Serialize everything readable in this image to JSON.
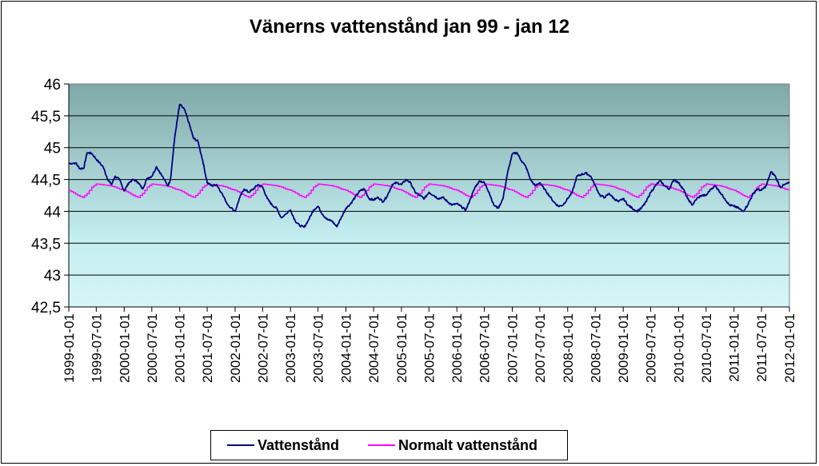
{
  "chart_data": {
    "type": "line",
    "title": "Vänerns vattenstånd jan 99 - jan 12",
    "xlabel": "",
    "ylabel": "",
    "ylim": [
      42.5,
      46
    ],
    "yticks": [
      "46",
      "45,5",
      "45",
      "44,5",
      "44",
      "43,5",
      "43",
      "42,5"
    ],
    "ytick_values": [
      46,
      45.5,
      45,
      44.5,
      44,
      43.5,
      43,
      42.5
    ],
    "xlim": [
      "1999-01-01",
      "2012-01-01"
    ],
    "xticks": [
      "1999-01-01",
      "1999-07-01",
      "2000-01-01",
      "2000-07-01",
      "2001-01-01",
      "2001-07-01",
      "2002-01-01",
      "2002-07-01",
      "2003-01-01",
      "2003-07-01",
      "2004-01-01",
      "2004-07-01",
      "2005-01-01",
      "2005-07-01",
      "2006-01-01",
      "2006-07-01",
      "2007-01-01",
      "2007-07-01",
      "2008-01-01",
      "2008-07-01",
      "2009-01-01",
      "2009-07-01",
      "2010-01-01",
      "2010-07-01",
      "2011-01-01",
      "2011-07-01",
      "2012-01-01"
    ],
    "grid": true,
    "legend": "bottom",
    "series": [
      {
        "name": "Vattenstånd",
        "color": "#000080",
        "points": [
          [
            "1999-01-01",
            44.75
          ],
          [
            "1999-02-15",
            44.76
          ],
          [
            "1999-03-15",
            44.67
          ],
          [
            "1999-04-10",
            44.68
          ],
          [
            "1999-05-01",
            44.92
          ],
          [
            "1999-06-01",
            44.91
          ],
          [
            "1999-07-01",
            44.82
          ],
          [
            "1999-08-15",
            44.7
          ],
          [
            "1999-09-15",
            44.5
          ],
          [
            "1999-10-10",
            44.42
          ],
          [
            "1999-11-01",
            44.55
          ],
          [
            "1999-12-01",
            44.5
          ],
          [
            "2000-01-01",
            44.32
          ],
          [
            "2000-02-01",
            44.45
          ],
          [
            "2000-03-01",
            44.5
          ],
          [
            "2000-04-01",
            44.46
          ],
          [
            "2000-05-01",
            44.35
          ],
          [
            "2000-06-01",
            44.52
          ],
          [
            "2000-07-01",
            44.55
          ],
          [
            "2000-08-01",
            44.7
          ],
          [
            "2000-09-01",
            44.58
          ],
          [
            "2000-10-15",
            44.4
          ],
          [
            "2000-11-01",
            44.5
          ],
          [
            "2000-12-01",
            45.2
          ],
          [
            "2001-01-01",
            45.68
          ],
          [
            "2001-02-01",
            45.6
          ],
          [
            "2001-03-01",
            45.4
          ],
          [
            "2001-04-01",
            45.15
          ],
          [
            "2001-05-01",
            45.1
          ],
          [
            "2001-06-01",
            44.8
          ],
          [
            "2001-07-01",
            44.45
          ],
          [
            "2001-08-01",
            44.4
          ],
          [
            "2001-09-01",
            44.42
          ],
          [
            "2001-10-01",
            44.3
          ],
          [
            "2001-11-15",
            44.1
          ],
          [
            "2002-01-01",
            44.0
          ],
          [
            "2002-02-01",
            44.22
          ],
          [
            "2002-03-01",
            44.35
          ],
          [
            "2002-04-01",
            44.3
          ],
          [
            "2002-05-01",
            44.35
          ],
          [
            "2002-06-01",
            44.42
          ],
          [
            "2002-07-01",
            44.38
          ],
          [
            "2002-08-01",
            44.2
          ],
          [
            "2002-09-01",
            44.1
          ],
          [
            "2002-10-01",
            44.05
          ],
          [
            "2002-11-01",
            43.9
          ],
          [
            "2003-01-01",
            44.02
          ],
          [
            "2003-02-01",
            43.85
          ],
          [
            "2003-03-01",
            43.78
          ],
          [
            "2003-04-01",
            43.75
          ],
          [
            "2003-05-01",
            43.87
          ],
          [
            "2003-06-01",
            44.02
          ],
          [
            "2003-07-01",
            44.08
          ],
          [
            "2003-08-01",
            43.95
          ],
          [
            "2003-09-01",
            43.87
          ],
          [
            "2003-10-01",
            43.85
          ],
          [
            "2003-11-01",
            43.76
          ],
          [
            "2003-12-01",
            43.9
          ],
          [
            "2004-01-01",
            44.05
          ],
          [
            "2004-02-01",
            44.12
          ],
          [
            "2004-03-01",
            44.22
          ],
          [
            "2004-04-01",
            44.32
          ],
          [
            "2004-05-01",
            44.35
          ],
          [
            "2004-06-01",
            44.2
          ],
          [
            "2004-07-01",
            44.18
          ],
          [
            "2004-08-01",
            44.22
          ],
          [
            "2004-09-01",
            44.15
          ],
          [
            "2004-10-01",
            44.25
          ],
          [
            "2004-11-01",
            44.42
          ],
          [
            "2004-12-01",
            44.45
          ],
          [
            "2005-01-01",
            44.42
          ],
          [
            "2005-02-01",
            44.5
          ],
          [
            "2005-03-01",
            44.45
          ],
          [
            "2005-04-01",
            44.3
          ],
          [
            "2005-05-01",
            44.25
          ],
          [
            "2005-06-01",
            44.2
          ],
          [
            "2005-07-01",
            44.3
          ],
          [
            "2005-08-01",
            44.25
          ],
          [
            "2005-09-01",
            44.2
          ],
          [
            "2005-10-01",
            44.22
          ],
          [
            "2005-11-01",
            44.15
          ],
          [
            "2005-12-01",
            44.1
          ],
          [
            "2006-01-01",
            44.12
          ],
          [
            "2006-02-01",
            44.07
          ],
          [
            "2006-03-01",
            44.02
          ],
          [
            "2006-04-01",
            44.2
          ],
          [
            "2006-05-01",
            44.38
          ],
          [
            "2006-06-01",
            44.48
          ],
          [
            "2006-07-01",
            44.45
          ],
          [
            "2006-08-01",
            44.3
          ],
          [
            "2006-09-01",
            44.1
          ],
          [
            "2006-10-01",
            44.05
          ],
          [
            "2006-11-01",
            44.2
          ],
          [
            "2006-12-01",
            44.6
          ],
          [
            "2007-01-01",
            44.9
          ],
          [
            "2007-02-01",
            44.92
          ],
          [
            "2007-03-01",
            44.8
          ],
          [
            "2007-04-01",
            44.7
          ],
          [
            "2007-05-01",
            44.5
          ],
          [
            "2007-06-01",
            44.4
          ],
          [
            "2007-07-01",
            44.45
          ],
          [
            "2007-08-01",
            44.35
          ],
          [
            "2007-09-01",
            44.25
          ],
          [
            "2007-10-01",
            44.15
          ],
          [
            "2007-11-01",
            44.08
          ],
          [
            "2007-12-01",
            44.1
          ],
          [
            "2008-01-01",
            44.2
          ],
          [
            "2008-02-01",
            44.3
          ],
          [
            "2008-03-01",
            44.55
          ],
          [
            "2008-04-01",
            44.58
          ],
          [
            "2008-05-01",
            44.6
          ],
          [
            "2008-06-01",
            44.55
          ],
          [
            "2008-07-01",
            44.4
          ],
          [
            "2008-08-01",
            44.25
          ],
          [
            "2008-09-01",
            44.22
          ],
          [
            "2008-10-01",
            44.28
          ],
          [
            "2008-11-01",
            44.2
          ],
          [
            "2008-12-01",
            44.15
          ],
          [
            "2009-01-01",
            44.2
          ],
          [
            "2009-02-01",
            44.1
          ],
          [
            "2009-03-01",
            44.05
          ],
          [
            "2009-04-01",
            44.0
          ],
          [
            "2009-05-01",
            44.05
          ],
          [
            "2009-06-01",
            44.15
          ],
          [
            "2009-07-01",
            44.3
          ],
          [
            "2009-08-01",
            44.4
          ],
          [
            "2009-09-01",
            44.48
          ],
          [
            "2009-10-01",
            44.4
          ],
          [
            "2009-11-01",
            44.35
          ],
          [
            "2009-12-01",
            44.5
          ],
          [
            "2010-01-01",
            44.45
          ],
          [
            "2010-02-01",
            44.35
          ],
          [
            "2010-03-01",
            44.2
          ],
          [
            "2010-04-01",
            44.1
          ],
          [
            "2010-05-01",
            44.2
          ],
          [
            "2010-06-01",
            44.25
          ],
          [
            "2010-07-01",
            44.25
          ],
          [
            "2010-08-01",
            44.35
          ],
          [
            "2010-09-01",
            44.4
          ],
          [
            "2010-10-01",
            44.3
          ],
          [
            "2010-11-01",
            44.2
          ],
          [
            "2010-12-01",
            44.1
          ],
          [
            "2011-01-01",
            44.08
          ],
          [
            "2011-02-01",
            44.05
          ],
          [
            "2011-03-01",
            44.0
          ],
          [
            "2011-04-01",
            44.1
          ],
          [
            "2011-05-01",
            44.25
          ],
          [
            "2011-06-01",
            44.35
          ],
          [
            "2011-07-01",
            44.33
          ],
          [
            "2011-08-01",
            44.4
          ],
          [
            "2011-09-01",
            44.62
          ],
          [
            "2011-10-01",
            44.55
          ],
          [
            "2011-11-01",
            44.38
          ],
          [
            "2011-12-01",
            44.42
          ],
          [
            "2012-01-01",
            44.45
          ]
        ]
      },
      {
        "name": "Normalt vattenstånd",
        "color": "#ff00ff",
        "seasonal_monthly": [
          44.33,
          44.29,
          44.25,
          44.22,
          44.28,
          44.38,
          44.43,
          44.42,
          44.41,
          44.4,
          44.38,
          44.35
        ]
      }
    ]
  }
}
